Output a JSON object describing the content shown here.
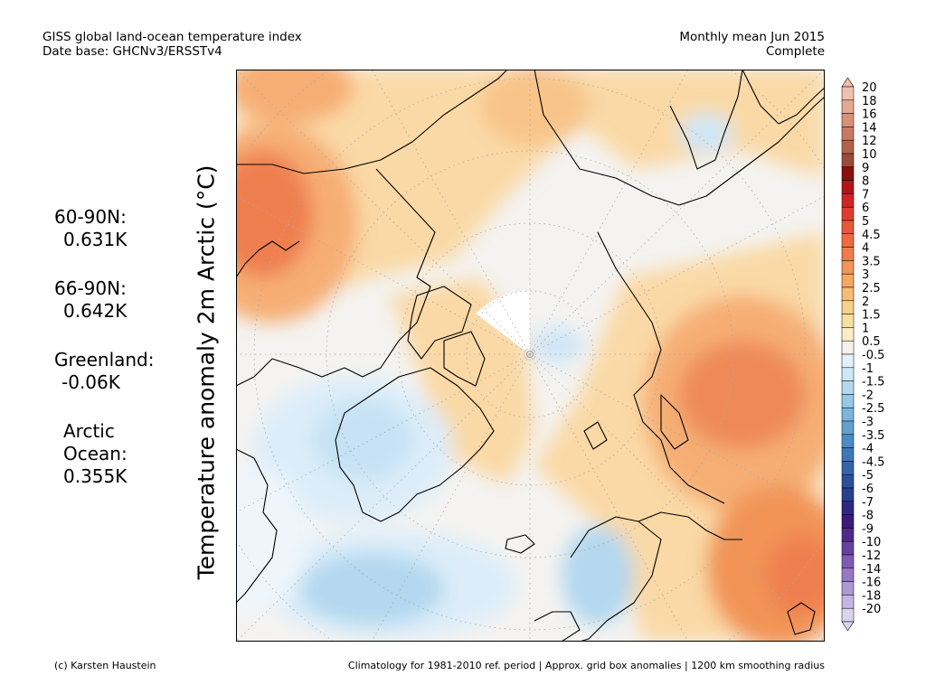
{
  "header": {
    "line1_left": "GISS global land-ocean temperature index",
    "line2_left": "Date base: GHCNv3/ERSSTv4",
    "line1_right": "Monthly mean Jun 2015",
    "line2_right": "Complete"
  },
  "y_axis_label": "Temperature anomaly 2m Arctic (°C)",
  "stats": [
    {
      "label": "60-90N:",
      "value": "0.631K"
    },
    {
      "label": "66-90N:",
      "value": "0.642K"
    },
    {
      "label": "Greenland:",
      "value": "-0.06K"
    },
    {
      "label": "Arctic Ocean:",
      "value": "0.355K"
    }
  ],
  "colorbar": {
    "labels": [
      "20",
      "18",
      "16",
      "14",
      "12",
      "10",
      "9",
      "8",
      "7",
      "6",
      "5",
      "4.5",
      "4",
      "3.5",
      "3",
      "2.5",
      "2",
      "1.5",
      "1",
      "0.5",
      "-0.5",
      "-1",
      "-1.5",
      "-2",
      "-2.5",
      "-3",
      "-3.5",
      "-4",
      "-4.5",
      "-5",
      "-6",
      "-7",
      "-8",
      "-9",
      "-10",
      "-12",
      "-14",
      "-16",
      "-18",
      "-20"
    ],
    "colors": [
      "#f0bfae",
      "#e5a892",
      "#d89279",
      "#c97a60",
      "#b5624b",
      "#9b4a3a",
      "#8b0f10",
      "#b01517",
      "#cf2424",
      "#e03d2f",
      "#e8563a",
      "#ed6b42",
      "#f07d4c",
      "#f29456",
      "#f5a863",
      "#f7bc74",
      "#f8cf88",
      "#f9dfa0",
      "#fbedc3",
      "#f4f2ee",
      "#e2f1fb",
      "#cde7f6",
      "#b2d9ef",
      "#97c8e6",
      "#7cb5dc",
      "#62a0d1",
      "#4d8bc5",
      "#3f76b8",
      "#3564ab",
      "#2c4f9c",
      "#283f8f",
      "#2c2a80",
      "#3a1c78",
      "#4f2a8a",
      "#6442a0",
      "#7e5cb4",
      "#9679c4",
      "#ad98d3",
      "#c4b6e1",
      "#dcd4ef"
    ]
  },
  "colors": {
    "warm_strong": "#ef7f50",
    "warm_mid": "#f6ae75",
    "warm_light": "#fad9a6",
    "neutral": "#f4f3f1",
    "cool_light": "#dcedf9",
    "cool_mid": "#b3d8ef"
  },
  "footer": {
    "left": "(c) Karsten Haustein",
    "right": "Climatology for 1981-2010 ref. period | Approx. grid box anomalies | 1200 km smoothing radius"
  }
}
